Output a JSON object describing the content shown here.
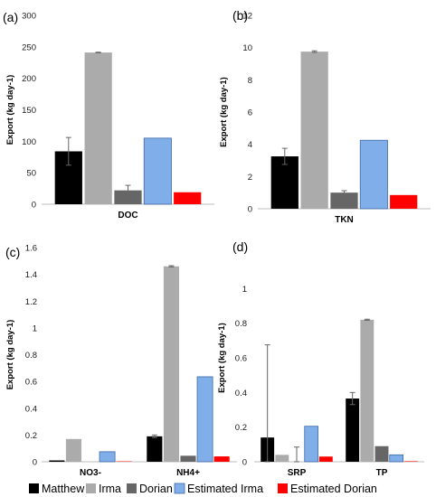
{
  "legend": [
    {
      "name": "Matthew",
      "color": "#000000"
    },
    {
      "name": "Irma",
      "color": "#ababab"
    },
    {
      "name": "Dorian",
      "color": "#666666"
    },
    {
      "name": "Estimated Irma",
      "color": "#7faee8"
    },
    {
      "name": "Estimated Dorian",
      "color": "#ff0000"
    }
  ],
  "colors": {
    "Matthew": "#000000",
    "Irma": "#ababab",
    "Dorian": "#666666",
    "Estimated Irma": "#7faee8",
    "Estimated Dorian": "#ff0000",
    "bar_outline": "#3f6aa6",
    "axis": "#bdbdbd",
    "error_bar": "#666666"
  },
  "chart_data": [
    {
      "panel": "(a)",
      "type": "bar",
      "ylabel": "Export (kg day-1)",
      "ylim": [
        0,
        300
      ],
      "yticks": [
        0,
        50,
        100,
        150,
        200,
        250,
        300
      ],
      "categories": [
        "DOC"
      ],
      "series": [
        {
          "name": "Matthew",
          "values": [
            84
          ],
          "error": [
            22
          ]
        },
        {
          "name": "Irma",
          "values": [
            241
          ],
          "error": [
            0.5
          ]
        },
        {
          "name": "Dorian",
          "values": [
            22
          ],
          "error": [
            8
          ]
        },
        {
          "name": "Estimated Irma",
          "values": [
            105
          ]
        },
        {
          "name": "Estimated Dorian",
          "values": [
            19
          ]
        }
      ]
    },
    {
      "panel": "(b)",
      "type": "bar",
      "ylabel": "Export (kg day-1)",
      "ylim": [
        0,
        12
      ],
      "yticks": [
        0,
        2,
        4,
        6,
        8,
        10,
        12
      ],
      "categories": [
        "TKN"
      ],
      "series": [
        {
          "name": "Matthew",
          "values": [
            3.25
          ],
          "error": [
            0.5
          ]
        },
        {
          "name": "Irma",
          "values": [
            9.75
          ],
          "error": [
            0.05
          ]
        },
        {
          "name": "Dorian",
          "values": [
            1.0
          ],
          "error": [
            0.12
          ]
        },
        {
          "name": "Estimated Irma",
          "values": [
            4.25
          ]
        },
        {
          "name": "Estimated Dorian",
          "values": [
            0.85
          ]
        }
      ]
    },
    {
      "panel": "(c)",
      "type": "bar",
      "ylabel": "Export (kg day-1)",
      "ylim": [
        0,
        1.6
      ],
      "yticks": [
        "0",
        "0.2",
        "0.4",
        "0.6",
        "0.8",
        "1",
        "1.2",
        "1.4",
        "1.6"
      ],
      "categories": [
        "NO3-",
        "NH4+"
      ],
      "series": [
        {
          "name": "Matthew",
          "values": [
            0.01,
            0.19
          ],
          "error": [
            0,
            0.01
          ]
        },
        {
          "name": "Irma",
          "values": [
            0.17,
            1.46
          ],
          "error": [
            0,
            0.005
          ]
        },
        {
          "name": "Dorian",
          "values": [
            0.0,
            0.045
          ],
          "error": [
            0,
            0
          ]
        },
        {
          "name": "Estimated Irma",
          "values": [
            0.075,
            0.635
          ]
        },
        {
          "name": "Estimated Dorian",
          "values": [
            0.003,
            0.04
          ]
        }
      ]
    },
    {
      "panel": "(d)",
      "type": "bar",
      "ylabel": "Export (kg day-1)",
      "ylim": [
        0,
        1.2
      ],
      "yticks": [
        "0",
        "0.2",
        "0.4",
        "0.6",
        "0.8",
        "1"
      ],
      "categories": [
        "SRP",
        "TP"
      ],
      "series": [
        {
          "name": "Matthew",
          "values": [
            0.14,
            0.365
          ],
          "error": [
            0.535,
            0.035
          ]
        },
        {
          "name": "Irma",
          "values": [
            0.04,
            0.82
          ],
          "error": [
            0,
            0.003
          ]
        },
        {
          "name": "Dorian",
          "values": [
            0.0,
            0.09
          ],
          "error": [
            0.085,
            0
          ]
        },
        {
          "name": "Estimated Irma",
          "values": [
            0.205,
            0.04
          ]
        },
        {
          "name": "Estimated Dorian",
          "values": [
            0.03,
            0.003
          ]
        }
      ]
    }
  ]
}
